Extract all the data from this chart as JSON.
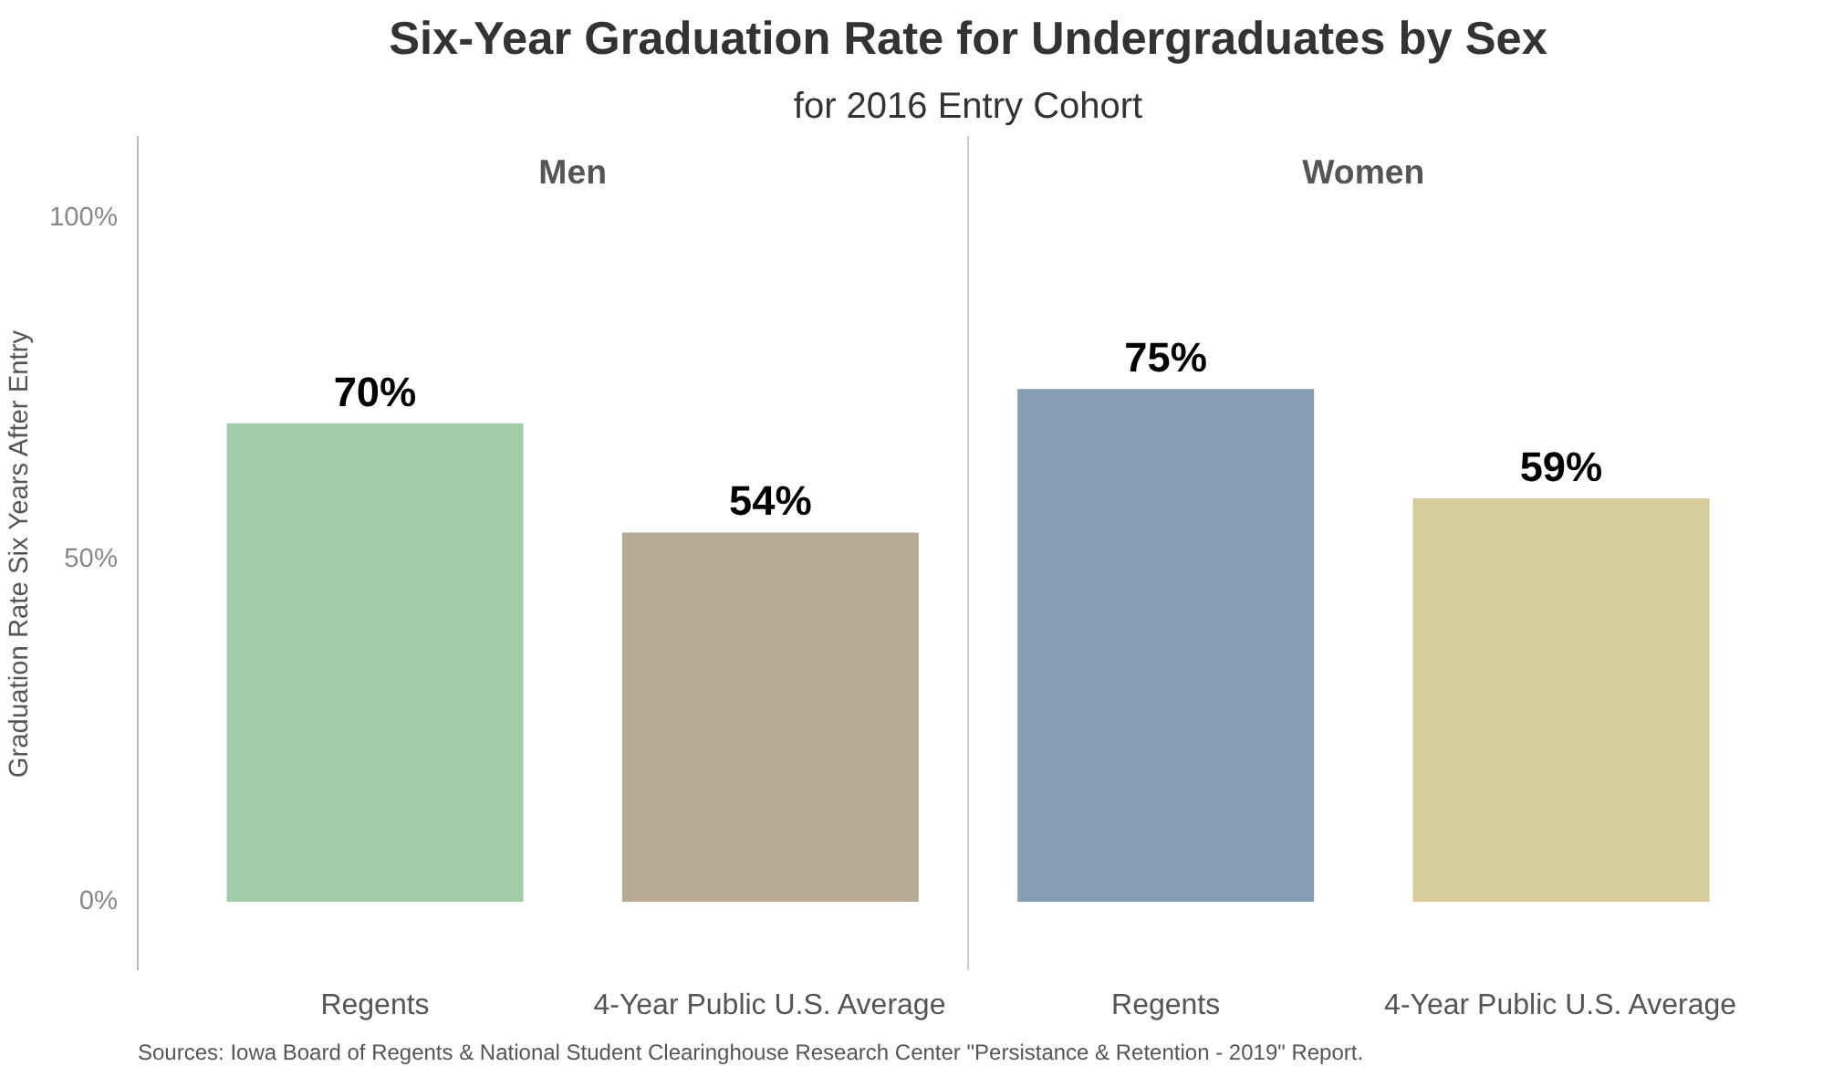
{
  "chart_data": {
    "type": "bar",
    "title": "Six-Year Graduation Rate for Undergraduates by Sex",
    "subtitle": "for 2016 Entry Cohort",
    "ylabel": "Graduation Rate Six Years After Entry",
    "categories": [
      "Regents",
      "4-Year Public U.S. Average",
      "Regents",
      "4-Year Public U.S. Average"
    ],
    "values": [
      70,
      54,
      75,
      59
    ],
    "value_labels": [
      "70%",
      "54%",
      "75%",
      "59%"
    ],
    "colors": [
      "#a3cca8",
      "#b8a994",
      "#859db2",
      "#d6cd9b"
    ],
    "ylim": [
      -10,
      112
    ],
    "yticks": [
      {
        "value": 0,
        "label": "0%"
      },
      {
        "value": 50,
        "label": "50%"
      },
      {
        "value": 100,
        "label": "100%"
      }
    ],
    "annotations": [
      "Men",
      "Women",
      "Sources: Iowa Board of Regents & National Student Clearinghouse Research Center \"Persistance & Retention - 2019\" Report."
    ],
    "grid": false
  }
}
